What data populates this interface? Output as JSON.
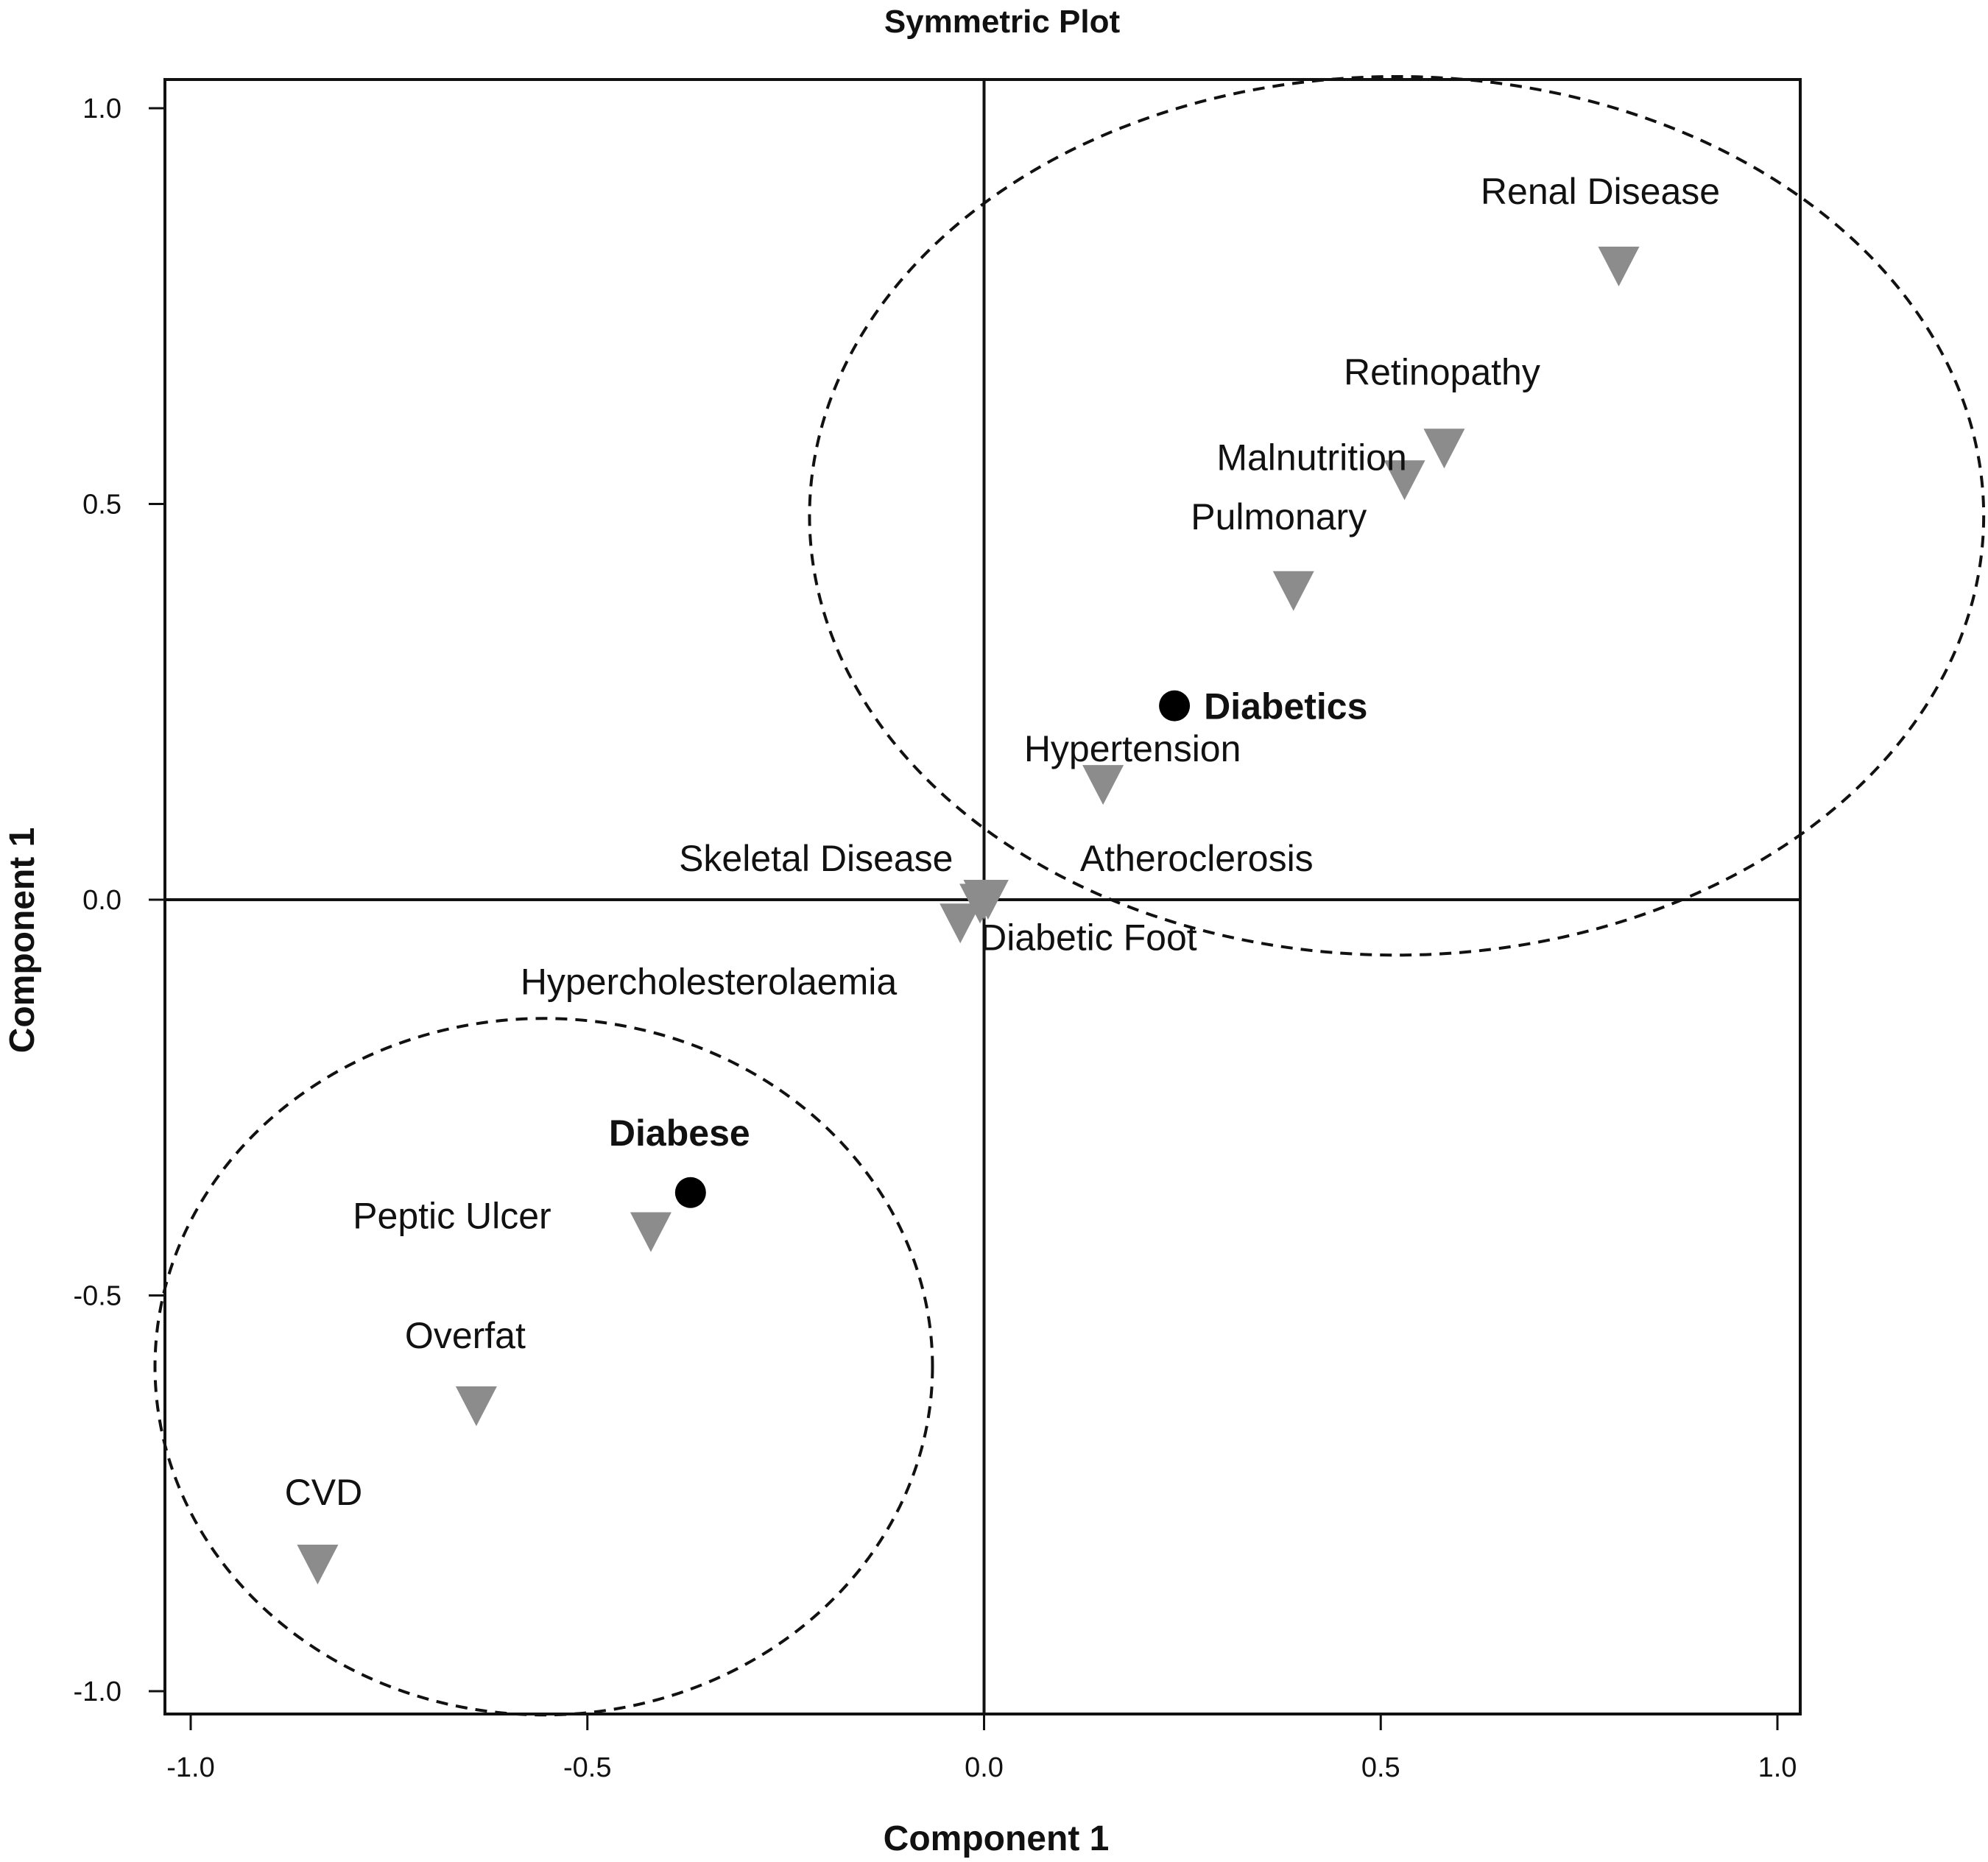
{
  "chart_data": {
    "type": "scatter",
    "title": "Symmetric Plot",
    "xlabel": "Component 1",
    "ylabel": "Component 1",
    "xlim": [
      -1.0,
      1.0
    ],
    "ylim": [
      -1.0,
      1.0
    ],
    "xticks": [
      "-1.0",
      "-0.5",
      "0.0",
      "0.5",
      "1.0"
    ],
    "yticks": [
      "-1.0",
      "-0.5",
      "0.0",
      "0.5",
      "1.0"
    ],
    "grid": false,
    "reference_lines": {
      "x": 0,
      "y": 0
    },
    "series": [
      {
        "marker": "circle",
        "color": "#000000",
        "points": [
          {
            "label": "Diabetics",
            "x": 0.24,
            "y": 0.245
          },
          {
            "label": "Diabese",
            "x": -0.37,
            "y": -0.37
          }
        ]
      },
      {
        "marker": "triangle-down",
        "color": "#8c8c8c",
        "points": [
          {
            "label": "Renal Disease",
            "x": 0.8,
            "y": 0.8
          },
          {
            "label": "Retinopathy",
            "x": 0.58,
            "y": 0.57
          },
          {
            "label": "Malnutrition",
            "x": 0.53,
            "y": 0.53
          },
          {
            "label": "Pulmonary",
            "x": 0.39,
            "y": 0.39
          },
          {
            "label": "Hypertension",
            "x": 0.15,
            "y": 0.145
          },
          {
            "label": "Atheroclerosis",
            "x": 0.005,
            "y": 0.0
          },
          {
            "label": "Skeletal Disease",
            "x": 0.0,
            "y": 0.0
          },
          {
            "label": "Hypercholesterolaemia",
            "x": -0.03,
            "y": -0.03
          },
          {
            "label": "Diabetic Foot",
            "x": -0.005,
            "y": -0.005
          },
          {
            "label": "Peptic Ulcer",
            "x": -0.42,
            "y": -0.42
          },
          {
            "label": "Overfat",
            "x": -0.64,
            "y": -0.64
          },
          {
            "label": "CVD",
            "x": -0.84,
            "y": -0.84
          }
        ]
      }
    ],
    "cluster_ellipses": [
      {
        "cx": 0.52,
        "cy": 0.485,
        "rx": 0.74,
        "ry": 0.555
      },
      {
        "cx": -0.555,
        "cy": -0.59,
        "rx": 0.49,
        "ry": 0.44
      }
    ]
  }
}
